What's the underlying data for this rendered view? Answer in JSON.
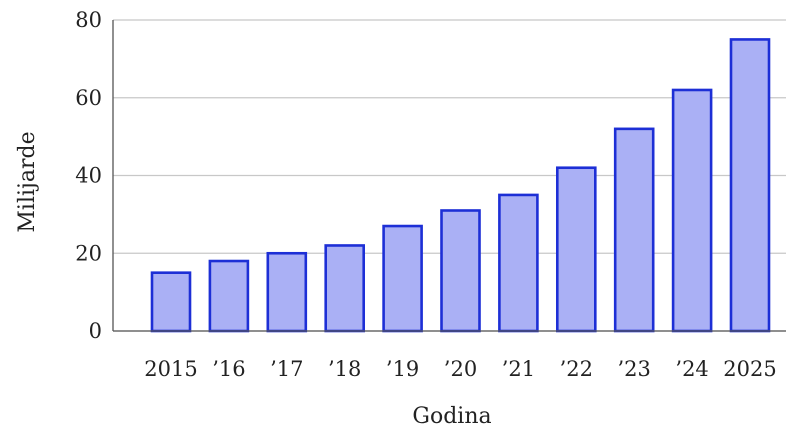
{
  "chart_data": {
    "type": "bar",
    "categories": [
      "2015",
      "’16",
      "’17",
      "’18",
      "’19",
      "’20",
      "’21",
      "’22",
      "’23",
      "’24",
      "2025"
    ],
    "values": [
      15,
      18,
      20,
      22,
      27,
      31,
      35,
      42,
      52,
      62,
      75
    ],
    "xlabel": "Godina",
    "ylabel": "Milijarde",
    "ylim": [
      0,
      80
    ],
    "yticks": [
      "0",
      "20",
      "40",
      "60",
      "80"
    ],
    "grid": true,
    "legend": "none",
    "colors": {
      "bar_fill": "#aab0f5",
      "bar_stroke": "#1d2fd6",
      "grid": "#c8c8c8",
      "axis": "#555555"
    }
  }
}
